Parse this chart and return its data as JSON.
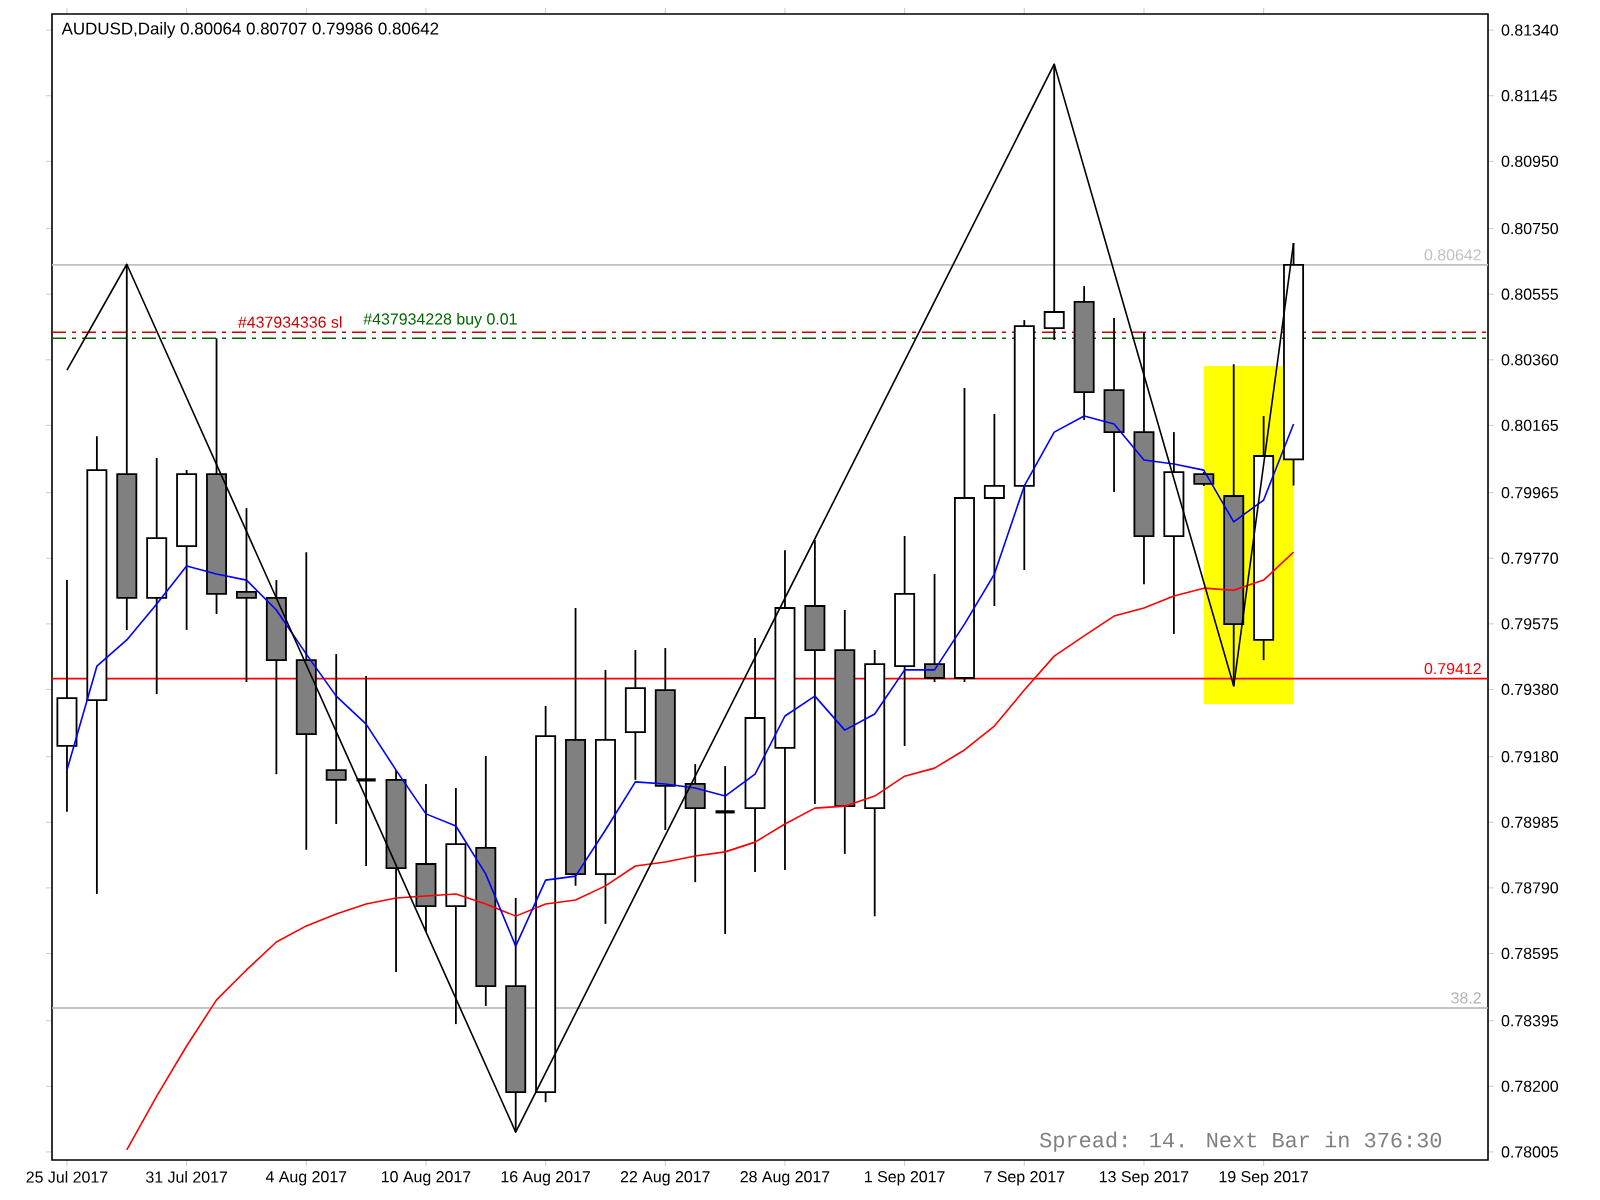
{
  "chart_data": {
    "type": "candlestick",
    "title": "AUDUSD,Daily  0.80064 0.80707 0.79986 0.80642",
    "annotations": [
      "Spread: 14. Next Bar in 376:30",
      {
        "text": "38.2",
        "y": 0.78433
      }
    ],
    "categories": [
      "25 Jul 2017",
      null,
      null,
      null,
      "31 Jul 2017",
      null,
      null,
      null,
      "4 Aug 2017",
      null,
      null,
      null,
      "10 Aug 2017",
      null,
      null,
      null,
      "16 Aug 2017",
      null,
      null,
      null,
      "22 Aug 2017",
      null,
      null,
      null,
      "28 Aug 2017",
      null,
      null,
      null,
      "1 Sep 2017",
      null,
      null,
      null,
      "7 Sep 2017",
      null,
      null,
      null,
      "13 Sep 2017",
      null,
      null,
      null,
      "19 Sep 2017",
      null,
      null,
      null,
      null,
      null,
      null,
      null
    ],
    "ohlc": [
      [
        0.79212,
        0.79705,
        0.79016,
        0.79354
      ],
      [
        0.79348,
        0.80133,
        0.78772,
        0.80032
      ],
      [
        0.8002,
        0.80644,
        0.79557,
        0.79652
      ],
      [
        0.79652,
        0.80068,
        0.79366,
        0.7983
      ],
      [
        0.79806,
        0.80032,
        0.79557,
        0.8002
      ],
      [
        0.8002,
        0.80424,
        0.79604,
        0.79664
      ],
      [
        0.7967,
        0.79919,
        0.79402,
        0.79652
      ],
      [
        0.79652,
        0.79705,
        0.79128,
        0.79467
      ],
      [
        0.79467,
        0.79788,
        0.78903,
        0.79247
      ],
      [
        0.7914,
        0.79485,
        0.7898,
        0.79111
      ],
      [
        0.79111,
        0.7942,
        0.78855,
        0.79111
      ],
      [
        0.79111,
        0.7914,
        0.7854,
        0.78849
      ],
      [
        0.78861,
        0.79099,
        0.78659,
        0.78736
      ],
      [
        0.78736,
        0.79087,
        0.78385,
        0.7892
      ],
      [
        0.78909,
        0.79182,
        0.78439,
        0.78498
      ],
      [
        0.78498,
        0.7876,
        0.78064,
        0.78183
      ],
      [
        0.78183,
        0.79331,
        0.78153,
        0.79241
      ],
      [
        0.7923,
        0.79622,
        0.78796,
        0.78831
      ],
      [
        0.78831,
        0.79438,
        0.78683,
        0.7923
      ],
      [
        0.79253,
        0.79497,
        0.79111,
        0.79384
      ],
      [
        0.79378,
        0.79503,
        0.78962,
        0.79093
      ],
      [
        0.79099,
        0.79158,
        0.78807,
        0.79027
      ],
      [
        0.79016,
        0.79152,
        0.78653,
        0.79016
      ],
      [
        0.79027,
        0.79533,
        0.78837,
        0.79295
      ],
      [
        0.79206,
        0.79794,
        0.78843,
        0.79622
      ],
      [
        0.79628,
        0.79824,
        0.79039,
        0.79497
      ],
      [
        0.79497,
        0.79616,
        0.78891,
        0.79033
      ],
      [
        0.79027,
        0.79497,
        0.78706,
        0.79455
      ],
      [
        0.79449,
        0.79836,
        0.79212,
        0.79664
      ],
      [
        0.79455,
        0.79723,
        0.79402,
        0.79414
      ],
      [
        0.79414,
        0.80276,
        0.79402,
        0.79949
      ],
      [
        0.79949,
        0.80199,
        0.79628,
        0.79985
      ],
      [
        0.79985,
        0.80478,
        0.79735,
        0.8046
      ],
      [
        0.80454,
        0.81239,
        0.80419,
        0.80502
      ],
      [
        0.80532,
        0.80579,
        0.80181,
        0.80264
      ],
      [
        0.8027,
        0.80484,
        0.79967,
        0.80145
      ],
      [
        0.80145,
        0.80442,
        0.79693,
        0.79836
      ],
      [
        0.79836,
        0.80145,
        0.79545,
        0.80026
      ],
      [
        0.8002,
        0.80026,
        0.79985,
        0.79991
      ],
      [
        0.79955,
        0.80347,
        0.7939,
        0.79574
      ],
      [
        0.79527,
        0.80193,
        0.79467,
        0.80074
      ],
      [
        0.80064,
        0.80707,
        0.79986,
        0.80642
      ],
      null,
      null,
      null,
      null,
      null,
      null
    ],
    "colors": [
      "#ffffff",
      "#ffffff",
      "#808080",
      "#ffffff",
      "#ffffff",
      "#808080",
      "#808080",
      "#808080",
      "#808080",
      "#808080",
      "#000000",
      "#808080",
      "#808080",
      "#ffffff",
      "#808080",
      "#808080",
      "#ffffff",
      "#808080",
      "#ffffff",
      "#ffffff",
      "#808080",
      "#808080",
      "#000000",
      "#ffffff",
      "#ffffff",
      "#808080",
      "#808080",
      "#ffffff",
      "#ffffff",
      "#808080",
      "#ffffff",
      "#ffffff",
      "#ffffff",
      "#ffffff",
      "#808080",
      "#808080",
      "#808080",
      "#ffffff",
      "#808080",
      "#808080",
      "#ffffff",
      "#ffffff",
      null,
      null,
      null,
      null,
      null,
      null
    ],
    "series": [
      {
        "type": "line",
        "color": "#ff0000",
        "values": [
          null,
          null,
          0.78011,
          0.78171,
          0.7832,
          0.78457,
          0.78546,
          0.78629,
          0.78677,
          0.78712,
          0.78742,
          0.7876,
          0.78766,
          0.78772,
          0.78742,
          0.78706,
          0.78742,
          0.78754,
          0.78796,
          0.78855,
          0.78867,
          0.78885,
          0.78897,
          0.78926,
          0.7898,
          0.79027,
          0.79033,
          0.79063,
          0.79122,
          0.79146,
          0.792,
          0.79271,
          0.79378,
          0.79479,
          0.79539,
          0.79598,
          0.79622,
          0.79658,
          0.79681,
          0.79675,
          0.79705,
          0.79788,
          null,
          null,
          null,
          null,
          null,
          null
        ]
      },
      {
        "type": "line",
        "color": "#0000ff",
        "values": [
          0.7914,
          0.79449,
          0.79527,
          0.79634,
          0.79747,
          0.79723,
          0.79705,
          0.79616,
          0.79485,
          0.7936,
          0.79277,
          0.7914,
          0.7901,
          0.78974,
          0.78831,
          0.78617,
          0.78813,
          0.78825,
          0.78962,
          0.79105,
          0.79099,
          0.79087,
          0.79063,
          0.79128,
          0.79301,
          0.7936,
          0.79259,
          0.79307,
          0.79438,
          0.79438,
          0.79574,
          0.79723,
          0.79985,
          0.80145,
          0.80193,
          0.80169,
          0.80062,
          0.8005,
          0.80032,
          0.79878,
          0.79943,
          0.80169,
          null,
          null,
          null,
          null,
          null,
          null
        ]
      },
      {
        "type": "line",
        "color": "#000000",
        "values": [
          0.80329,
          null,
          0.80644,
          null,
          null,
          null,
          null,
          null,
          null,
          null,
          null,
          null,
          null,
          null,
          null,
          0.78064,
          null,
          null,
          null,
          null,
          null,
          null,
          null,
          null,
          null,
          null,
          null,
          null,
          null,
          null,
          null,
          null,
          null,
          0.81239,
          null,
          null,
          null,
          null,
          null,
          0.7939,
          null,
          0.80707,
          null,
          null,
          null,
          null,
          null,
          null
        ]
      }
    ],
    "ylim": [
      0.77981,
      0.81388
    ],
    "yticks": [
      {
        "value": 0.8134,
        "label": "0.81340"
      },
      {
        "value": 0.81145,
        "label": "0.81145"
      },
      {
        "value": 0.8095,
        "label": "0.80950"
      },
      {
        "value": 0.8075,
        "label": "0.80750"
      },
      {
        "value": 0.80555,
        "label": "0.80555"
      },
      {
        "value": 0.8036,
        "label": "0.80360"
      },
      {
        "value": 0.80165,
        "label": "0.80165"
      },
      {
        "value": 0.79965,
        "label": "0.79965"
      },
      {
        "value": 0.7977,
        "label": "0.79770"
      },
      {
        "value": 0.79575,
        "label": "0.79575"
      },
      {
        "value": 0.7938,
        "label": "0.79380"
      },
      {
        "value": 0.7918,
        "label": "0.79180"
      },
      {
        "value": 0.78985,
        "label": "0.78985"
      },
      {
        "value": 0.7879,
        "label": "0.78790"
      },
      {
        "value": 0.78595,
        "label": "0.78595"
      },
      {
        "value": 0.78395,
        "label": "0.78395"
      },
      {
        "value": 0.782,
        "label": "0.78200"
      },
      {
        "value": 0.78005,
        "label": "0.78005"
      }
    ],
    "ref_lines": [
      {
        "axis": "y",
        "value": 0.80642,
        "label": "0.80642",
        "color": "#c0c0c0",
        "line_style": "solid"
      },
      {
        "axis": "y",
        "value": 0.80442,
        "label": "#437934336 sl",
        "color": "#cc0000",
        "line_style": "dashed"
      },
      {
        "axis": "y",
        "value": 0.80424,
        "label": "#437934228 buy 0.01",
        "color": "#006400",
        "line_style": "dashed"
      },
      {
        "axis": "y",
        "value": 0.79412,
        "label": "0.79412",
        "color": "#ff0000",
        "line_style": "solid"
      },
      {
        "axis": "y",
        "value": 0.78433,
        "color": "#b0b0b0",
        "line_style": "solid"
      }
    ]
  }
}
